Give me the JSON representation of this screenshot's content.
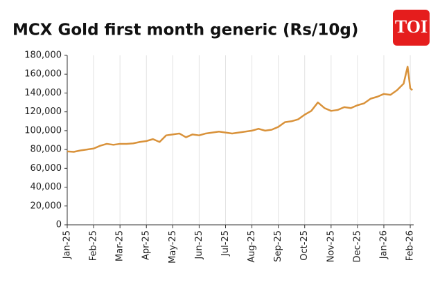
{
  "logo": "TOI",
  "chart_data": {
    "type": "line",
    "title": "MCX Gold first month generic (Rs/10g)",
    "x": [
      0,
      0.25,
      0.5,
      0.75,
      1,
      1.25,
      1.5,
      1.75,
      2,
      2.25,
      2.5,
      2.75,
      3,
      3.25,
      3.5,
      3.75,
      4,
      4.25,
      4.5,
      4.75,
      5,
      5.25,
      5.5,
      5.75,
      6,
      6.25,
      6.5,
      6.75,
      7,
      7.25,
      7.5,
      7.75,
      8,
      8.25,
      8.5,
      8.75,
      9,
      9.25,
      9.5,
      9.75,
      10,
      10.25,
      10.5,
      10.75,
      11,
      11.25,
      11.5,
      11.75,
      12,
      12.25,
      12.5,
      12.75,
      12.9,
      13,
      13.08
    ],
    "series": [
      {
        "name": "MCX Gold",
        "color": "#d9923a",
        "values": [
          78000,
          77500,
          79000,
          80000,
          81000,
          84000,
          86000,
          85000,
          86000,
          86000,
          86500,
          88000,
          89000,
          91000,
          88000,
          95000,
          96000,
          97000,
          93000,
          96000,
          95000,
          97000,
          98000,
          99000,
          98000,
          97000,
          98000,
          99000,
          100000,
          102000,
          100000,
          101000,
          104000,
          109000,
          110000,
          112000,
          117000,
          121000,
          130000,
          124000,
          121000,
          122000,
          125000,
          124000,
          127000,
          129000,
          134000,
          136000,
          139000,
          138000,
          143000,
          150000,
          168000,
          145000,
          143000
        ]
      }
    ],
    "xlim": [
      0,
      13.13
    ],
    "xticks": [
      {
        "value": 0,
        "label": "Jan-25"
      },
      {
        "value": 1,
        "label": "Feb-25"
      },
      {
        "value": 2,
        "label": "Mar-25"
      },
      {
        "value": 3,
        "label": "Apr-25"
      },
      {
        "value": 4,
        "label": "May-25"
      },
      {
        "value": 5,
        "label": "Jun-25"
      },
      {
        "value": 6,
        "label": "Jul-25"
      },
      {
        "value": 7,
        "label": "Aug-25"
      },
      {
        "value": 8,
        "label": "Sep-25"
      },
      {
        "value": 9,
        "label": "Oct-25"
      },
      {
        "value": 10,
        "label": "Nov-25"
      },
      {
        "value": 11,
        "label": "Dec-25"
      },
      {
        "value": 12,
        "label": "Jan-26"
      },
      {
        "value": 13,
        "label": "Feb-26"
      }
    ],
    "ylim": [
      0,
      180000
    ],
    "yticks": [
      0,
      {
        "value": 20000,
        "label": "20,000"
      },
      {
        "value": 40000,
        "label": "40,000"
      },
      {
        "value": 60000,
        "label": "60,000"
      },
      {
        "value": 80000,
        "label": "80,000"
      },
      {
        "value": 100000,
        "label": "100,000"
      },
      {
        "value": 120000,
        "label": "120,000"
      },
      {
        "value": 140000,
        "label": "140,000"
      },
      {
        "value": 160000,
        "label": "160,000"
      },
      {
        "value": 180000,
        "label": "180,000"
      }
    ],
    "grid": true
  }
}
